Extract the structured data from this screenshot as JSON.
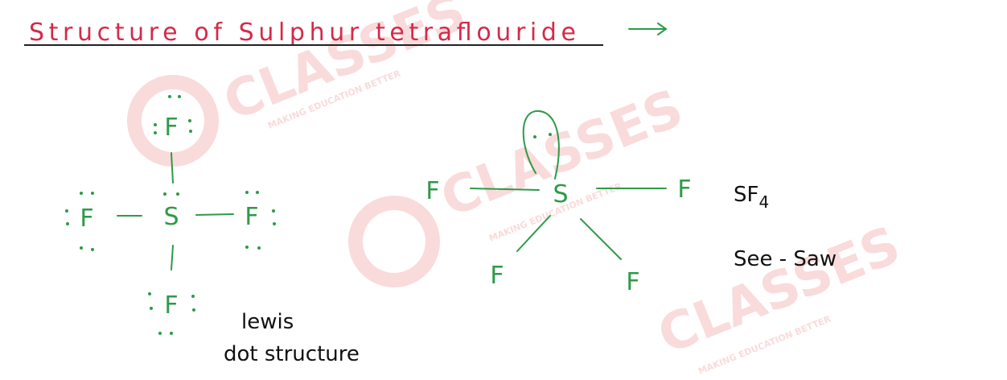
{
  "header": {
    "title": "Structure of Sulphur tetraflouride"
  },
  "lewis_structure": {
    "central": "S",
    "ligands": [
      "F",
      "F",
      "F",
      "F"
    ],
    "caption": [
      "lewis",
      "dot structure"
    ]
  },
  "seesaw_structure": {
    "central": "S",
    "ligands": [
      "F",
      "F",
      "F",
      "F"
    ]
  },
  "formula": {
    "base": "SF",
    "subscript": "4"
  },
  "shape": "See - Saw",
  "watermark": {
    "name": "CLASSES",
    "tagline": "MAKING EDUCATION BETTER"
  }
}
